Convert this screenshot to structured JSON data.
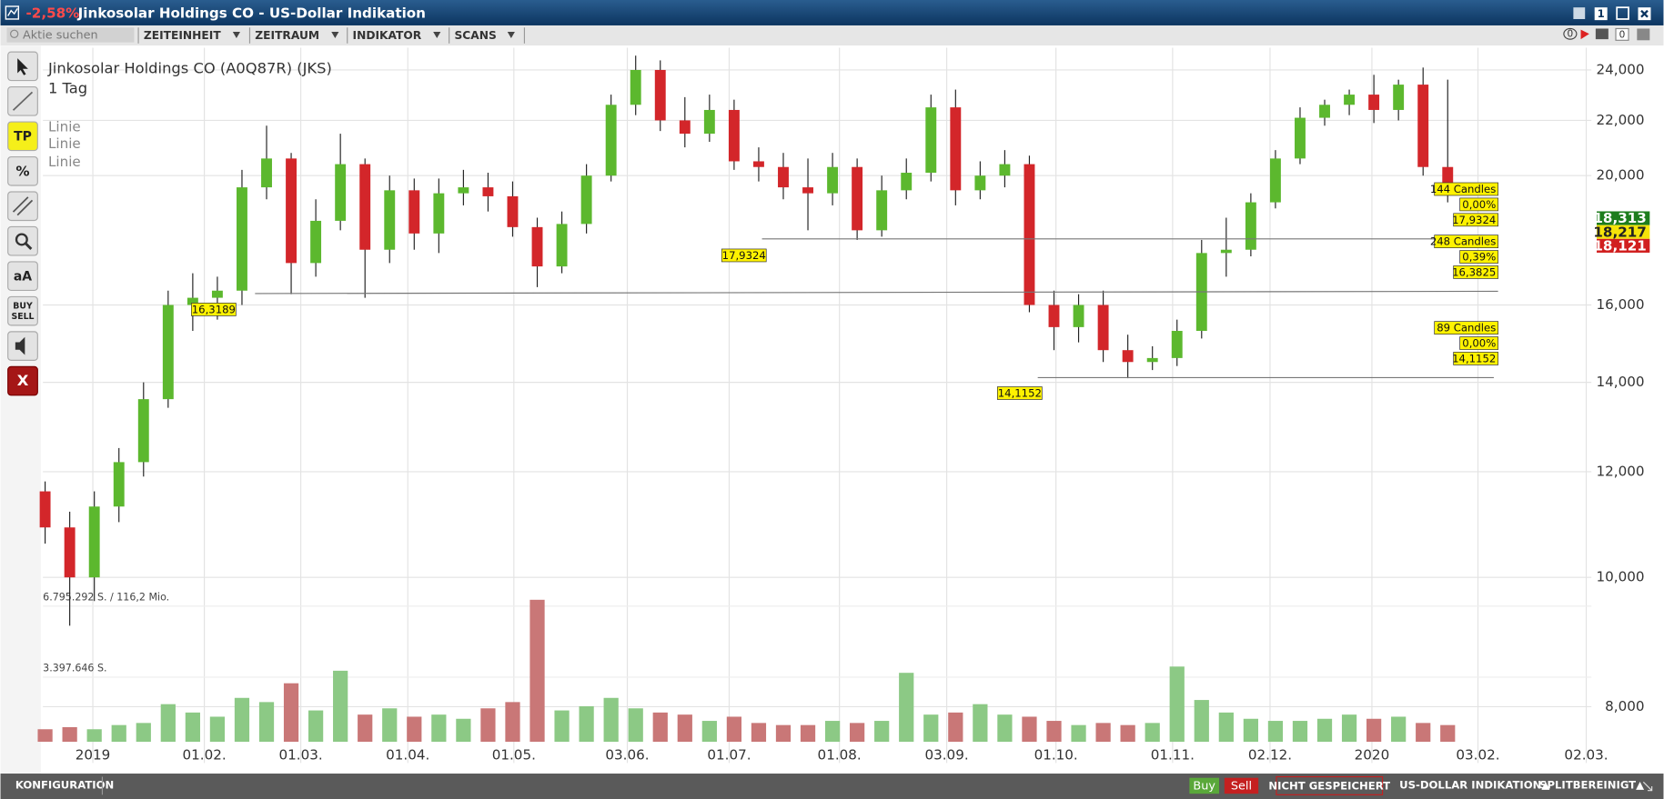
{
  "window": {
    "change": "-2,58%",
    "title": "Jinkosolar Holdings CO - US-Dollar Indikation",
    "badge": "1"
  },
  "toolbar": {
    "search_placeholder": "Aktie suchen",
    "menus": [
      "ZEITEINHEIT",
      "ZEITRAUM",
      "INDIKATOR",
      "SCANS"
    ],
    "counters": [
      "0",
      "0"
    ]
  },
  "sidebar": {
    "tp": "TP",
    "percent": "%",
    "text": "aA",
    "buy": "BUY",
    "sell": "SELL",
    "close": "X"
  },
  "footer": {
    "config": "KONFIGURATION",
    "buy": "Buy",
    "sell": "Sell",
    "saved": "NICHT GESPEICHERT",
    "currency": "US-DOLLAR INDIKATION▲",
    "split": "SPLITBEREINIGT▲"
  },
  "chart_data": {
    "type": "candlestick",
    "title": "Jinkosolar Holdings CO (A0Q87R) (JKS)",
    "subtitle": "1 Tag",
    "legend": [
      "Linie",
      "Linie",
      "Linie"
    ],
    "up_color": "#5cb82e",
    "down_color": "#d3262a",
    "volume_up_color": "#8cc985",
    "volume_down_color": "#c97777",
    "log_y": true,
    "grid": true,
    "open": [
      11.6,
      10.9,
      10.0,
      11.3,
      12.2,
      13.6,
      16.0,
      16.2,
      16.4,
      19.6,
      20.6,
      17.2,
      18.5,
      20.4,
      17.6,
      19.5,
      18.1,
      19.4,
      19.6,
      19.3,
      18.3,
      17.1,
      18.4,
      20.0,
      22.6,
      24.0,
      22.0,
      21.5,
      22.4,
      20.5,
      20.3,
      19.6,
      19.4,
      20.3,
      18.2,
      19.5,
      20.1,
      22.5,
      19.5,
      20.0,
      20.4,
      16.0,
      15.4,
      16.0,
      14.8,
      14.5,
      14.6,
      15.3,
      17.5,
      17.6,
      19.1,
      20.6,
      22.1,
      22.6,
      23.0,
      22.4,
      23.4,
      20.3
    ],
    "high": [
      11.8,
      11.2,
      11.6,
      12.5,
      14.0,
      16.4,
      16.9,
      16.8,
      20.2,
      21.8,
      20.8,
      19.2,
      21.5,
      20.6,
      20.0,
      19.9,
      19.9,
      20.2,
      20.1,
      19.8,
      18.6,
      18.8,
      20.4,
      23.0,
      24.6,
      24.4,
      22.9,
      23.0,
      22.8,
      21.0,
      20.8,
      20.6,
      20.8,
      20.6,
      20.0,
      20.6,
      23.0,
      23.2,
      20.5,
      20.9,
      20.7,
      16.4,
      16.3,
      16.4,
      15.2,
      14.9,
      15.6,
      17.9,
      18.6,
      19.4,
      20.9,
      22.5,
      22.8,
      23.2,
      23.8,
      23.6,
      24.1,
      23.6
    ],
    "low": [
      10.6,
      9.2,
      9.6,
      11.0,
      11.9,
      13.4,
      15.3,
      15.6,
      16.0,
      19.2,
      16.3,
      16.8,
      18.2,
      16.2,
      17.2,
      17.6,
      17.5,
      19.0,
      18.8,
      18.0,
      16.5,
      16.9,
      18.1,
      19.8,
      22.2,
      21.6,
      21.0,
      21.2,
      20.2,
      19.8,
      19.2,
      18.2,
      19.0,
      17.9,
      18.0,
      19.2,
      19.8,
      19.0,
      19.2,
      19.6,
      15.8,
      14.8,
      15.0,
      14.5,
      14.1,
      14.3,
      14.4,
      15.1,
      16.8,
      17.4,
      18.9,
      20.4,
      21.8,
      22.2,
      21.9,
      22.0,
      20.0,
      19.1
    ],
    "close": [
      10.9,
      10.0,
      11.3,
      12.2,
      13.6,
      16.0,
      16.2,
      16.4,
      19.6,
      20.6,
      17.2,
      18.5,
      20.4,
      17.6,
      19.5,
      18.1,
      19.4,
      19.6,
      19.3,
      18.3,
      17.1,
      18.4,
      20.0,
      22.6,
      24.0,
      22.0,
      21.5,
      22.4,
      20.5,
      20.3,
      19.6,
      19.4,
      20.3,
      18.2,
      19.5,
      20.1,
      22.5,
      19.5,
      20.0,
      20.4,
      16.0,
      15.4,
      16.0,
      14.8,
      14.5,
      14.6,
      15.3,
      17.5,
      17.6,
      19.1,
      20.6,
      22.1,
      22.6,
      23.0,
      22.4,
      23.4,
      20.3,
      19.4
    ],
    "volume": [
      600000,
      700000,
      600000,
      800000,
      900000,
      1800000,
      1400000,
      1200000,
      2100000,
      1900000,
      2800000,
      1500000,
      3400000,
      1300000,
      1600000,
      1200000,
      1300000,
      1100000,
      1600000,
      1900000,
      6795292,
      1500000,
      1700000,
      2100000,
      1600000,
      1400000,
      1300000,
      1000000,
      1200000,
      900000,
      800000,
      800000,
      1000000,
      900000,
      1000000,
      3300000,
      1300000,
      1400000,
      1800000,
      1300000,
      1200000,
      1000000,
      800000,
      900000,
      800000,
      900000,
      3600000,
      2000000,
      1400000,
      1100000,
      1000000,
      1000000,
      1100000,
      1300000,
      1100000,
      1200000,
      900000,
      800000
    ],
    "ylim": [
      7.26,
      24.94
    ],
    "yticks": [
      {
        "value": 8,
        "label": "8,000"
      },
      {
        "value": 10,
        "label": "10,000"
      },
      {
        "value": 12,
        "label": "12,000"
      },
      {
        "value": 14,
        "label": "14,000"
      },
      {
        "value": 16,
        "label": "16,000"
      },
      {
        "value": 20,
        "label": "20,000"
      },
      {
        "value": 22,
        "label": "22,000"
      },
      {
        "value": 24,
        "label": "24,000"
      }
    ],
    "xlim": [
      -0.09,
      62.84
    ],
    "xticks": [
      {
        "value": 1.94,
        "label": "2019"
      },
      {
        "value": 6.47,
        "label": "01.02."
      },
      {
        "value": 10.39,
        "label": "01.03."
      },
      {
        "value": 14.74,
        "label": "01.04."
      },
      {
        "value": 19.05,
        "label": "01.05."
      },
      {
        "value": 23.66,
        "label": "03.06."
      },
      {
        "value": 27.8,
        "label": "01.07."
      },
      {
        "value": 32.28,
        "label": "01.08."
      },
      {
        "value": 36.64,
        "label": "03.09."
      },
      {
        "value": 41.08,
        "label": "01.10."
      },
      {
        "value": 45.82,
        "label": "01.11."
      },
      {
        "value": 49.78,
        "label": "02.12."
      },
      {
        "value": 53.92,
        "label": "2020"
      },
      {
        "value": 58.23,
        "label": "03.02."
      },
      {
        "value": 62.63,
        "label": "02.03."
      }
    ],
    "volume_lim": [
      0,
      6795292
    ],
    "volume_ticks": [
      {
        "value": 3397646,
        "label": "3.397.646 S."
      },
      {
        "value": 6795292,
        "label": "6.795.292 S. / 116,2 Mio."
      }
    ],
    "lines": [
      {
        "start": 17.9324,
        "end": 17.9324,
        "start_label": "17,9324",
        "candles": "144 Candles",
        "change": "0,00%",
        "end_label": "17,9324"
      },
      {
        "start": 16.3189,
        "end": 16.3825,
        "start_label": "16,3189",
        "candles": "248 Candles",
        "change": "0,39%",
        "end_label": "16,3825"
      },
      {
        "start": 14.1152,
        "end": 14.1152,
        "start_label": "14,1152",
        "candles": "89 Candles",
        "change": "0,00%",
        "end_label": "14,1152"
      }
    ],
    "last_prices": [
      {
        "value": 18.313,
        "label": "18,313",
        "color": "#1e7d1e"
      },
      {
        "value": 18.217,
        "label": "18,217",
        "color": "#f5e40a"
      },
      {
        "value": 18.121,
        "label": "18,121",
        "color": "#d11f1f"
      }
    ]
  }
}
